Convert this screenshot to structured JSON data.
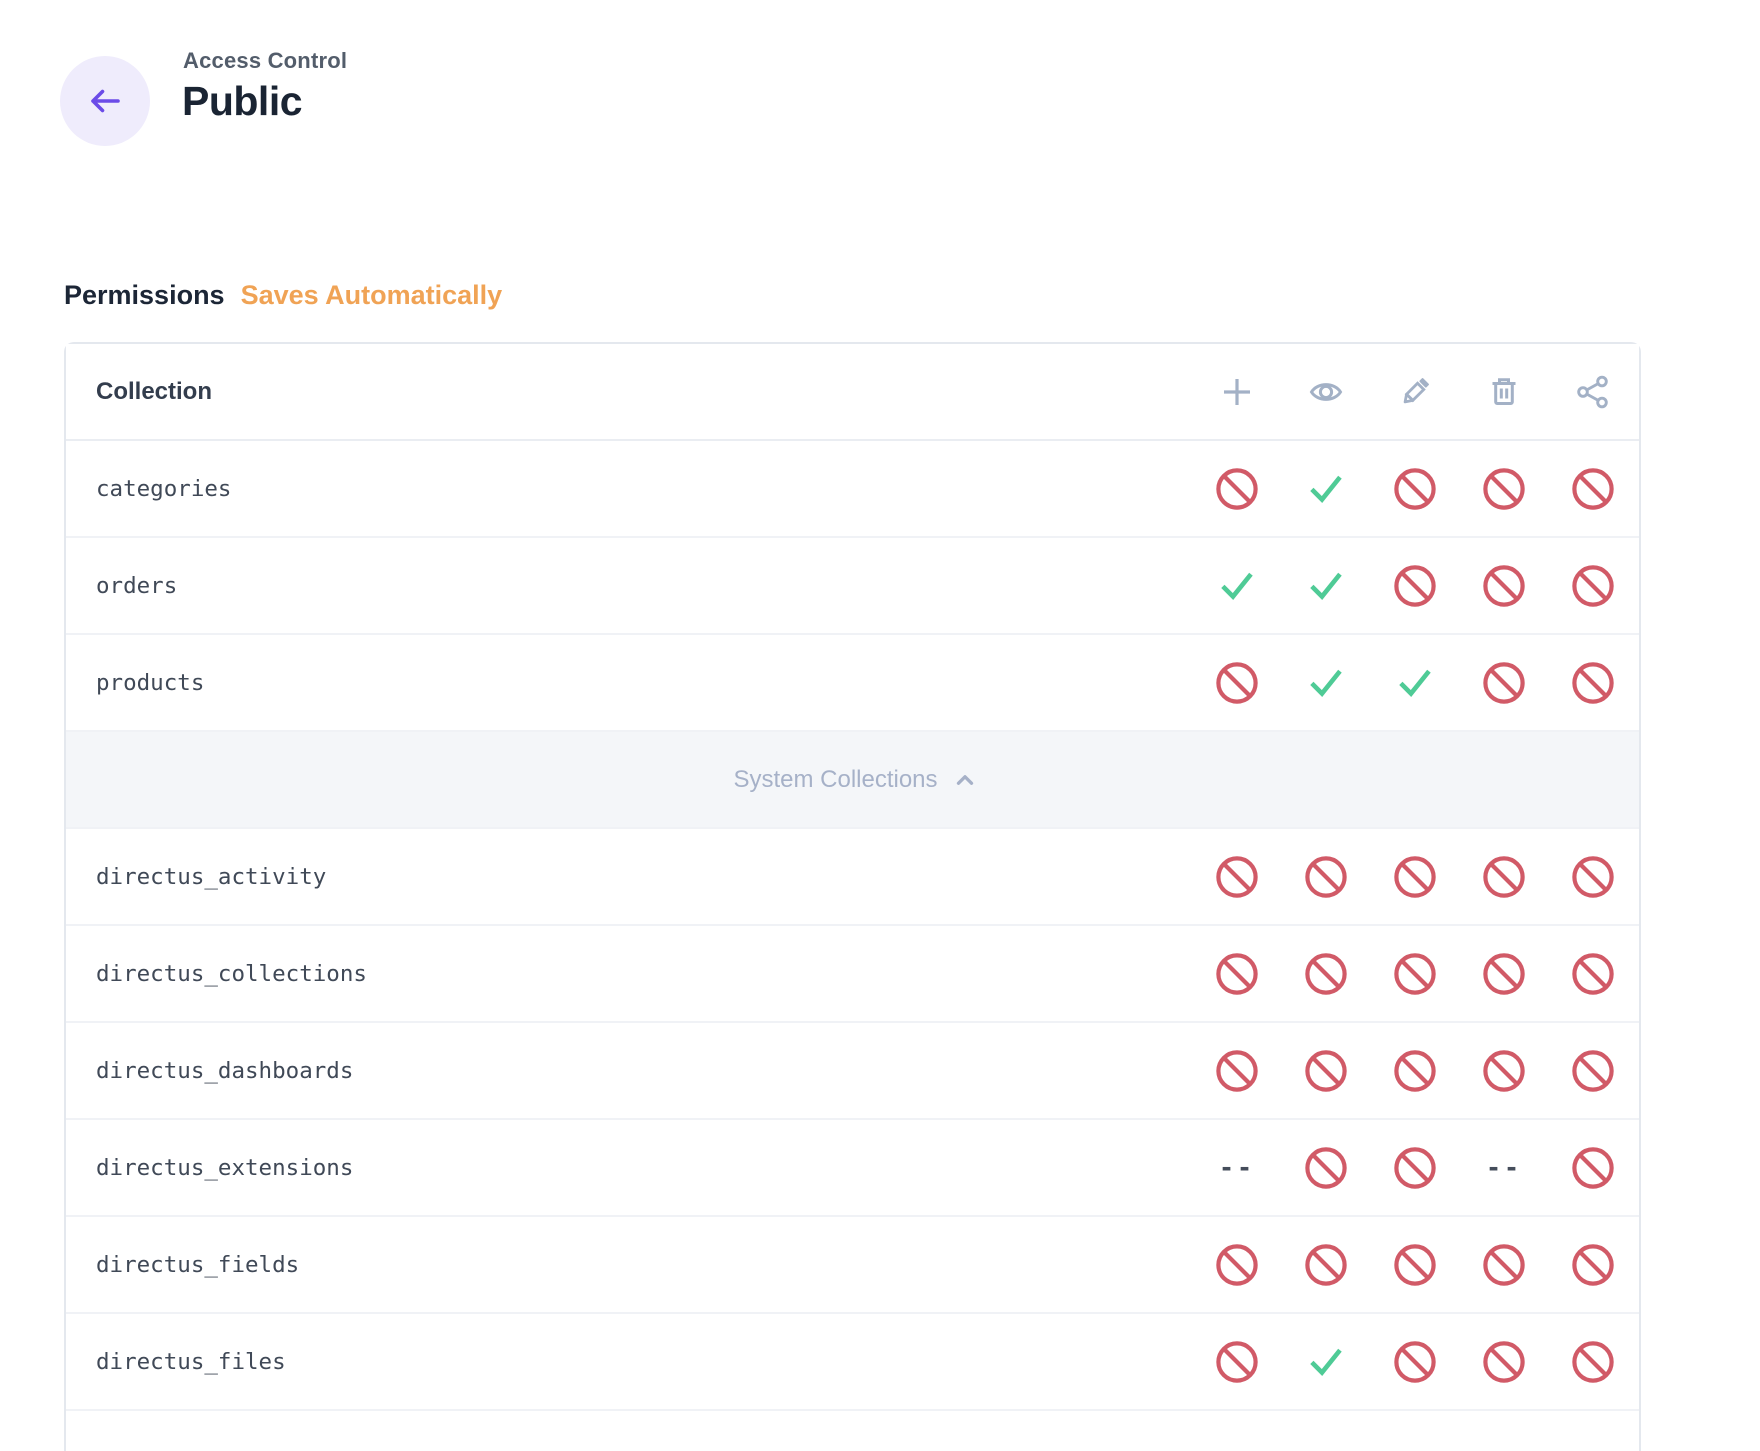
{
  "header": {
    "breadcrumb": "Access Control",
    "title": "Public"
  },
  "permissions": {
    "heading": "Permissions",
    "autosave_note": "Saves Automatically"
  },
  "table": {
    "collection_header": "Collection",
    "action_columns": [
      {
        "action": "create",
        "icon": "plus-icon"
      },
      {
        "action": "read",
        "icon": "eye-icon"
      },
      {
        "action": "update",
        "icon": "pencil-icon"
      },
      {
        "action": "delete",
        "icon": "trash-icon"
      },
      {
        "action": "share",
        "icon": "share-icon"
      }
    ],
    "rows": [
      {
        "type": "collection",
        "collection": "categories",
        "permissions": [
          "blocked",
          "allowed",
          "blocked",
          "blocked",
          "blocked"
        ]
      },
      {
        "type": "collection",
        "collection": "orders",
        "permissions": [
          "allowed",
          "allowed",
          "blocked",
          "blocked",
          "blocked"
        ]
      },
      {
        "type": "collection",
        "collection": "products",
        "permissions": [
          "blocked",
          "allowed",
          "allowed",
          "blocked",
          "blocked"
        ]
      },
      {
        "type": "divider",
        "label": "System Collections",
        "icon": "chevron-up-icon"
      },
      {
        "type": "collection",
        "collection": "directus_activity",
        "permissions": [
          "blocked",
          "blocked",
          "blocked",
          "blocked",
          "blocked"
        ]
      },
      {
        "type": "collection",
        "collection": "directus_collections",
        "permissions": [
          "blocked",
          "blocked",
          "blocked",
          "blocked",
          "blocked"
        ]
      },
      {
        "type": "collection",
        "collection": "directus_dashboards",
        "permissions": [
          "blocked",
          "blocked",
          "blocked",
          "blocked",
          "blocked"
        ]
      },
      {
        "type": "collection",
        "collection": "directus_extensions",
        "permissions": [
          "none",
          "blocked",
          "blocked",
          "none",
          "blocked"
        ]
      },
      {
        "type": "collection",
        "collection": "directus_fields",
        "permissions": [
          "blocked",
          "blocked",
          "blocked",
          "blocked",
          "blocked"
        ]
      },
      {
        "type": "collection",
        "collection": "directus_files",
        "permissions": [
          "blocked",
          "allowed",
          "blocked",
          "blocked",
          "blocked"
        ]
      }
    ],
    "none_glyph": "--"
  },
  "colors": {
    "accent_purple": "#6b4be8",
    "accent_purple_bg": "#efecfc",
    "blocked_red": "#d15a67",
    "allowed_green": "#4fcb96",
    "warning_orange": "#f0a355",
    "header_icon_gray": "#a3b1c6",
    "divider_gray": "#a6b1c8"
  }
}
